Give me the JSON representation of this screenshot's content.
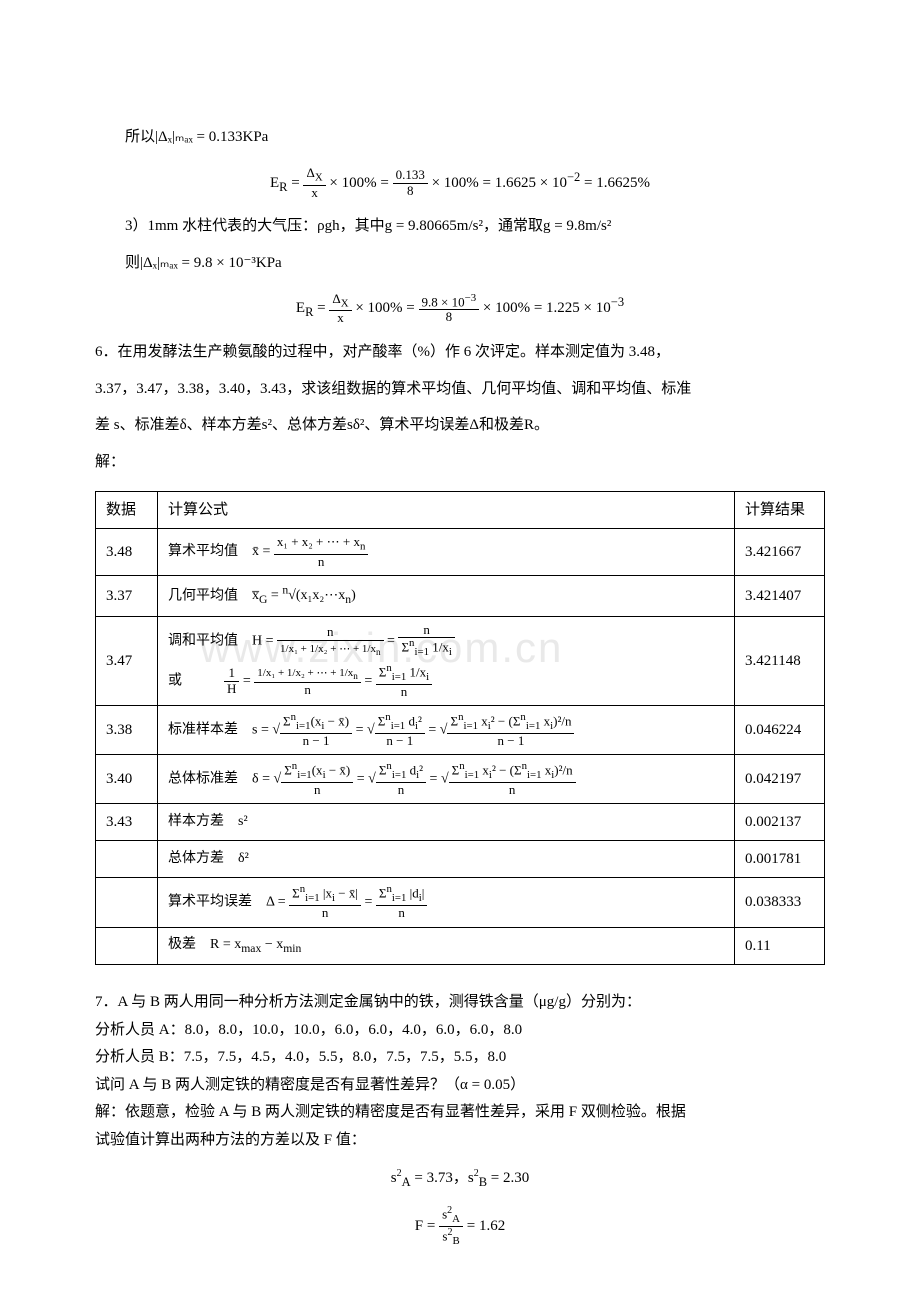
{
  "watermark": "www.zixin.com.cn",
  "para1": {
    "l1": "所以|Δₓ|ₘₐₓ = 0.133KPa",
    "eq1": "E_R = (Δ_X / x) × 100% = (0.133 / 8) × 100% = 1.6625 × 10⁻² = 1.6625%",
    "l2": "3）1mm 水柱代表的大气压：ρgh，其中g = 9.80665m/s²，通常取g = 9.8m/s²",
    "l3": "则|Δₓ|ₘₐₓ = 9.8 × 10⁻³KPa",
    "eq2": "E_R = (Δ_X / x) × 100% = (9.8 × 10⁻³ / 8) × 100% = 1.225 × 10⁻³"
  },
  "para2": {
    "l1": "6．在用发酵法生产赖氨酸的过程中，对产酸率（%）作 6 次评定。样本测定值为 3.48，",
    "l2": "3.37，3.47，3.38，3.40，3.43，求该组数据的算术平均值、几何平均值、调和平均值、标准",
    "l3": "差 s、标准差δ、样本方差s²、总体方差sδ²、算术平均误差Δ和极差R。",
    "l4": "解："
  },
  "table": {
    "header": {
      "c1": "数据",
      "c2": "计算公式",
      "c3": "计算结果"
    },
    "rows": [
      {
        "data": "3.48",
        "label": "算术平均值",
        "formula_html": "<span class='math'>x̄ = </span><span class='frac'><span class='num'>x₁ + x₂ + ⋯ + x<sub>n</sub></span><span class='den'>n</span></span>",
        "result": "3.421667"
      },
      {
        "data": "3.37",
        "label": "几何平均值",
        "formula_html": "<span class='math'>x̅<sub>G</sub> = <sup>n</sup>√(x₁x₂⋯x<sub>n</sub>)</span>",
        "result": "3.421407"
      },
      {
        "data": "3.47",
        "label": "调和平均值",
        "formula_html": "<span class='math'>H = </span><span class='frac'><span class='num'>n</span><span class='den'><span style='font-size:11px'>1/x₁ + 1/x₂ + ⋯ + 1/x<sub>n</sub></span></span></span> = <span class='frac'><span class='num'>n</span><span class='den'>Σ<sup>n</sup><sub>i=1</sub> 1/x<sub>i</sub></span></span><br><span style='display:inline-block;margin-top:4px'>或　　　<span class='frac'><span class='num'>1</span><span class='den'>H</span></span> = <span class='frac'><span class='num'><span style='font-size:11px'>1/x₁ + 1/x₂ + ⋯ + 1/x<sub>n</sub></span></span><span class='den'>n</span></span> = <span class='frac'><span class='num'>Σ<sup>n</sup><sub>i=1</sub> 1/x<sub>i</sub></span><span class='den'>n</span></span></span>",
        "result": "3.421148"
      },
      {
        "data": "3.38",
        "label": "标准样本差",
        "formula_html": "<span class='math'>s = √</span><span class='frac'><span class='num'>Σ<sup>n</sup><sub>i=1</sub>(x<sub>i</sub> − x̄)</span><span class='den'>n − 1</span></span> = √<span class='frac'><span class='num'>Σ<sup>n</sup><sub>i=1</sub> d<sub>i</sub>²</span><span class='den'>n − 1</span></span> = √<span class='frac'><span class='num'>Σ<sup>n</sup><sub>i=1</sub> x<sub>i</sub>² − (Σ<sup>n</sup><sub>i=1</sub> x<sub>i</sub>)²/n</span><span class='den'>n − 1</span></span>",
        "result": "0.046224"
      },
      {
        "data": "3.40",
        "label": "总体标准差",
        "formula_html": "<span class='math'>δ = √</span><span class='frac'><span class='num'>Σ<sup>n</sup><sub>i=1</sub>(x<sub>i</sub> − x̄)</span><span class='den'>n</span></span> = √<span class='frac'><span class='num'>Σ<sup>n</sup><sub>i=1</sub> d<sub>i</sub>²</span><span class='den'>n</span></span> = √<span class='frac'><span class='num'>Σ<sup>n</sup><sub>i=1</sub> x<sub>i</sub>² − (Σ<sup>n</sup><sub>i=1</sub> x<sub>i</sub>)²/n</span><span class='den'>n</span></span>",
        "result": "0.042197"
      },
      {
        "data": "3.43",
        "label": "样本方差",
        "formula_html": "<span class='math'>s²</span>",
        "result": "0.002137"
      },
      {
        "data": "",
        "label": "总体方差",
        "formula_html": "<span class='math'>δ²</span>",
        "result": "0.001781"
      },
      {
        "data": "",
        "label": "算术平均误差",
        "formula_html": "<span class='math'>Δ = </span><span class='frac'><span class='num'>Σ<sup>n</sup><sub>i=1</sub> |x<sub>i</sub> − x̄|</span><span class='den'>n</span></span> = <span class='frac'><span class='num'>Σ<sup>n</sup><sub>i=1</sub> |d<sub>i</sub>|</span><span class='den'>n</span></span>",
        "result": "0.038333"
      },
      {
        "data": "",
        "label": "极差",
        "formula_html": "<span class='math'>R = x<sub>max</sub> − x<sub>min</sub></span>",
        "result": "0.11"
      }
    ]
  },
  "para3": {
    "l1": "7．A 与 B 两人用同一种分析方法测定金属钠中的铁，测得铁含量（μg/g）分别为：",
    "l2": "分析人员 A：8.0，8.0，10.0，10.0，6.0，6.0，4.0，6.0，6.0，8.0",
    "l3": "分析人员 B：7.5，7.5，4.5，4.0，5.5，8.0，7.5，7.5，5.5，8.0",
    "l4": "试问 A 与 B 两人测定铁的精密度是否有显著性差异？（α = 0.05）",
    "l5": "解：依题意，检验 A 与 B 两人测定铁的精密度是否有显著性差异，采用 F 双侧检验。根据",
    "l6": "试验值计算出两种方法的方差以及 F 值：",
    "eq1": "s²_A = 3.73，s²_B = 2.30",
    "eq2": "F = s²_A / s²_B = 1.62"
  }
}
